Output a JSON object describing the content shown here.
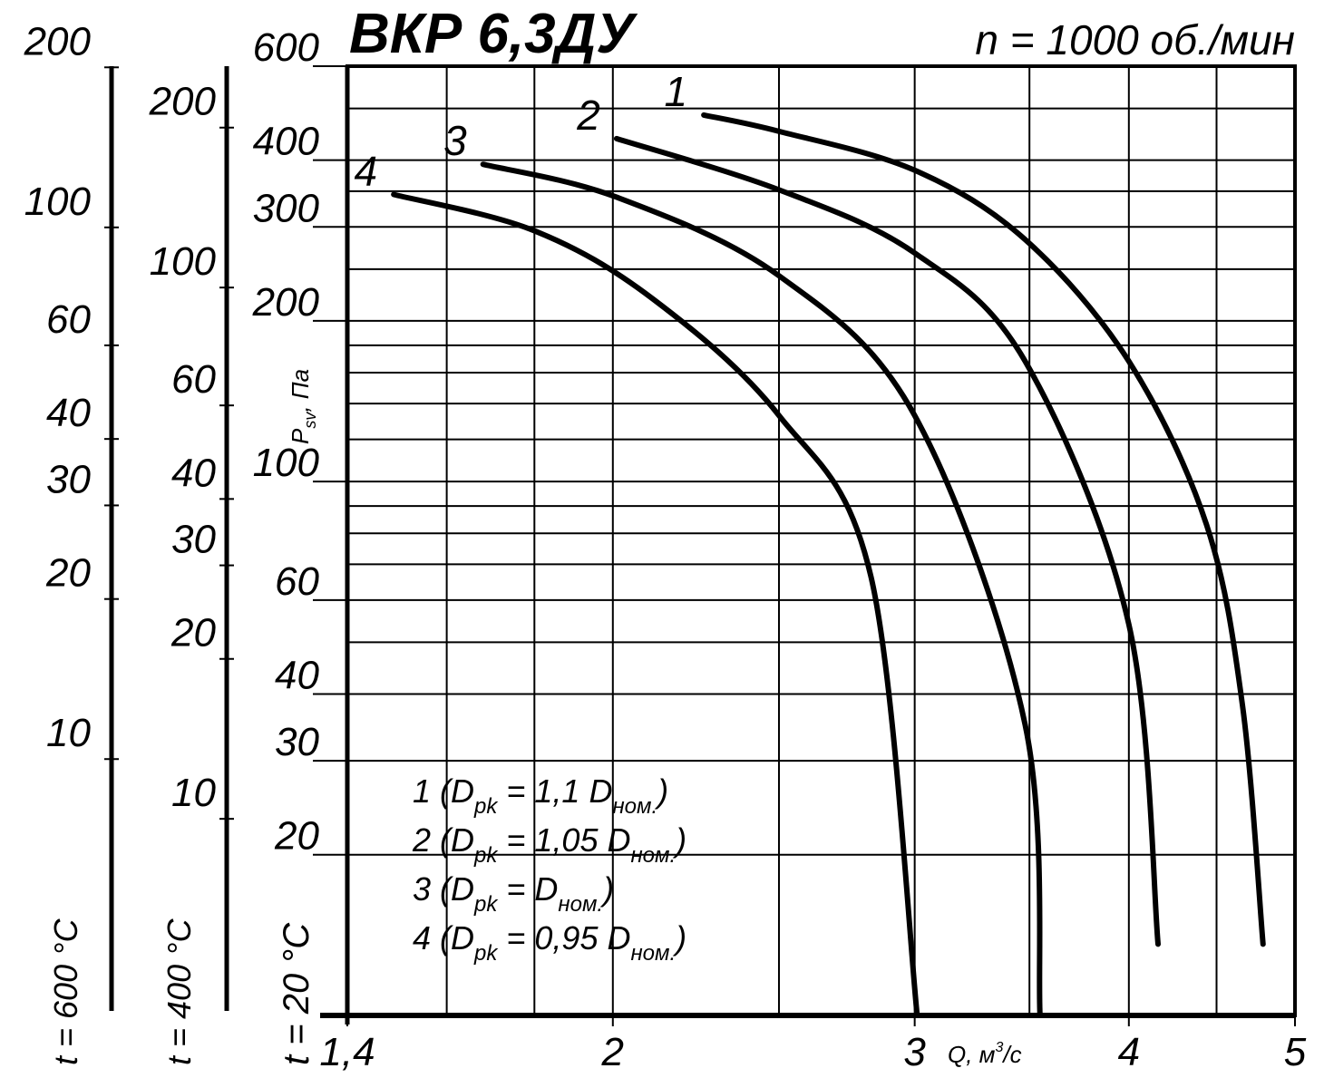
{
  "chart_data": {
    "type": "line",
    "title": "ВКР 6,3ДУ",
    "subtitle": "n = 1000 об./мин",
    "ylabel": [
      "P",
      "sv",
      ", Па"
    ],
    "xlabel": [
      "Q, м",
      "3",
      "/с"
    ],
    "xlog": true,
    "ylog": true,
    "xlim": [
      1.4,
      5
    ],
    "xticks": [
      {
        "value": 1.4,
        "label": "1,4"
      },
      2,
      3,
      4,
      5
    ],
    "xgrid": [
      1.6,
      1.8,
      2.5,
      3.5,
      4.5
    ],
    "ylim": [
      10,
      600
    ],
    "yticks": [
      20,
      30,
      40,
      60,
      100,
      200,
      300,
      400,
      600
    ],
    "ygrid": [
      50,
      70,
      80,
      90,
      120,
      140,
      160,
      180,
      250,
      350,
      500
    ],
    "y_axis_title": "t = 20 °C",
    "extra_axes": [
      {
        "label": "t = 600 °C",
        "ylim": [
          3.36,
          201
        ],
        "yticks": [
          10,
          20,
          30,
          40,
          60,
          100,
          200
        ]
      },
      {
        "label": "t = 400 °C",
        "ylim": [
          4.35,
          261
        ],
        "yticks": [
          10,
          20,
          30,
          40,
          60,
          100,
          200
        ]
      }
    ],
    "series": [
      {
        "name": "1",
        "color": "#000000",
        "x": [
          2.26,
          2.5,
          3.0,
          3.48,
          4.0,
          4.44,
          4.66,
          4.79
        ],
        "values": [
          486,
          453,
          383,
          284,
          168,
          83,
          38,
          13.6
        ]
      },
      {
        "name": "2",
        "color": "#000000",
        "x": [
          2.01,
          2.5,
          3.0,
          3.48,
          4.0,
          4.16
        ],
        "values": [
          439,
          352,
          268,
          168,
          54,
          13.6
        ]
      },
      {
        "name": "3",
        "color": "#000000",
        "x": [
          1.68,
          2.01,
          2.5,
          3.0,
          3.48,
          3.55
        ],
        "values": [
          393,
          341,
          243,
          133,
          35,
          10
        ]
      },
      {
        "name": "4",
        "color": "#000000",
        "x": [
          1.49,
          1.8,
          2.11,
          2.5,
          2.83,
          3.01
        ],
        "values": [
          345,
          295,
          220,
          133,
          66,
          10
        ]
      }
    ],
    "legend_text": [
      [
        "1 (D",
        "pk",
        " = 1,1 D",
        "ном.",
        ")"
      ],
      [
        "2 (D",
        "pk",
        " = 1,05 D",
        "ном.",
        ")"
      ],
      [
        "3 (D",
        "pk",
        " = D",
        "ном.",
        ")"
      ],
      [
        "4 (D",
        "pk",
        " = 0,95 D",
        "ном.",
        ")"
      ]
    ]
  }
}
